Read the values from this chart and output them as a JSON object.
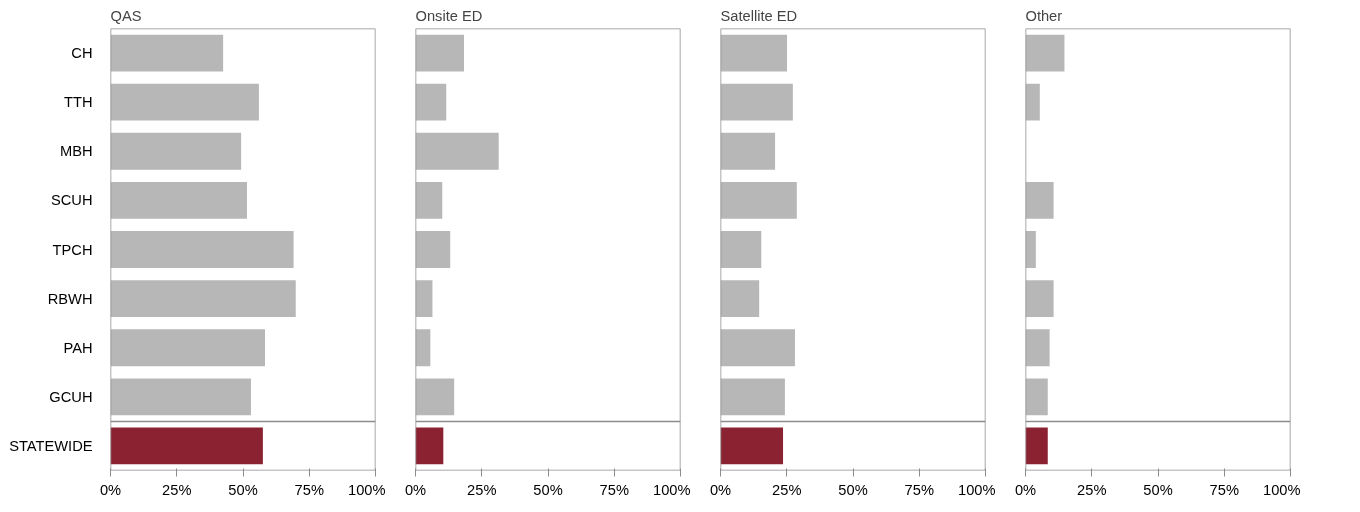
{
  "chart_data": [
    {
      "type": "bar",
      "orientation": "horizontal",
      "title": "QAS",
      "categories": [
        "CH",
        "TTH",
        "MBH",
        "SCUH",
        "TPCH",
        "RBWH",
        "PAH",
        "GCUH",
        "STATEWIDE"
      ],
      "values": [
        42.5,
        56.0,
        49.3,
        51.5,
        69.1,
        69.9,
        58.3,
        53.0,
        57.5
      ],
      "colors": [
        "#b7b7b7",
        "#b7b7b7",
        "#b7b7b7",
        "#b7b7b7",
        "#b7b7b7",
        "#b7b7b7",
        "#b7b7b7",
        "#b7b7b7",
        "#8b2232"
      ],
      "xlim": [
        0,
        100
      ],
      "xticks": [
        {
          "value": 0,
          "label": "0%"
        },
        {
          "value": 25,
          "label": "25%"
        },
        {
          "value": 50,
          "label": "50%"
        },
        {
          "value": 75,
          "label": "75%"
        },
        {
          "value": 100,
          "label": "100%"
        }
      ],
      "grid": false
    },
    {
      "type": "bar",
      "orientation": "horizontal",
      "title": "Onsite ED",
      "categories": [
        null,
        null,
        null,
        null,
        null,
        null,
        null,
        null,
        null
      ],
      "values": [
        18.3,
        11.6,
        31.4,
        10.1,
        13.1,
        6.4,
        5.6,
        14.6,
        10.5
      ],
      "colors": [
        "#b7b7b7",
        "#b7b7b7",
        "#b7b7b7",
        "#b7b7b7",
        "#b7b7b7",
        "#b7b7b7",
        "#b7b7b7",
        "#b7b7b7",
        "#8b2232"
      ],
      "xlim": [
        0,
        100
      ],
      "xticks": [
        {
          "value": 0,
          "label": "0%"
        },
        {
          "value": 25,
          "label": "25%"
        },
        {
          "value": 50,
          "label": "50%"
        },
        {
          "value": 75,
          "label": "75%"
        },
        {
          "value": 100,
          "label": "100%"
        }
      ],
      "grid": false,
      "tick_labels": "x"
    },
    {
      "type": "bar",
      "orientation": "horizontal",
      "title": "Satellite ED",
      "categories": [
        null,
        null,
        null,
        null,
        null,
        null,
        null,
        null,
        null
      ],
      "values": [
        25.1,
        27.3,
        20.6,
        28.8,
        15.4,
        14.6,
        28.1,
        24.3,
        23.6
      ],
      "colors": [
        "#b7b7b7",
        "#b7b7b7",
        "#b7b7b7",
        "#b7b7b7",
        "#b7b7b7",
        "#b7b7b7",
        "#b7b7b7",
        "#b7b7b7",
        "#8b2232"
      ],
      "xlim": [
        0,
        100
      ],
      "xticks": [
        {
          "value": 0,
          "label": "0%"
        },
        {
          "value": 25,
          "label": "25%"
        },
        {
          "value": 50,
          "label": "50%"
        },
        {
          "value": 75,
          "label": "75%"
        },
        {
          "value": 100,
          "label": "100%"
        }
      ],
      "grid": false,
      "tick_labels": "x"
    },
    {
      "type": "bar",
      "orientation": "horizontal",
      "title": "Other",
      "categories": [
        null,
        null,
        null,
        null,
        null,
        null,
        null,
        null,
        null
      ],
      "values": [
        14.7,
        5.4,
        null,
        10.6,
        3.9,
        10.6,
        9.1,
        8.4,
        8.4
      ],
      "colors": [
        "#b7b7b7",
        "#b7b7b7",
        "#b7b7b7",
        "#b7b7b7",
        "#b7b7b7",
        "#b7b7b7",
        "#b7b7b7",
        "#b7b7b7",
        "#8b2232"
      ],
      "xlim": [
        0,
        100
      ],
      "xticks": [
        {
          "value": 0,
          "label": "0%"
        },
        {
          "value": 25,
          "label": "25%"
        },
        {
          "value": 50,
          "label": "50%"
        },
        {
          "value": 75,
          "label": "75%"
        },
        {
          "value": 100,
          "label": "100%"
        }
      ],
      "grid": false,
      "tick_labels": "x"
    }
  ]
}
